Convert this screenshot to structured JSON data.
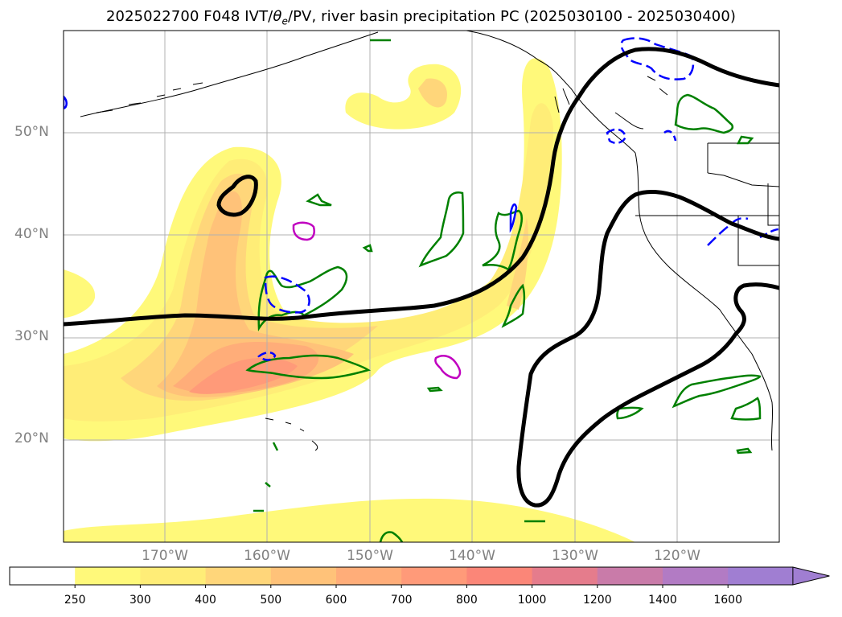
{
  "title": {
    "prefix": "2025022700 F048 IVT/",
    "theta": "θ",
    "theta_sub": "e",
    "suffix": "/PV, river basin precipitation PC (2025030100 - 2025030400)"
  },
  "lat_labels": [
    "50°N",
    "40°N",
    "30°N",
    "20°N"
  ],
  "lon_labels": [
    "170°W",
    "160°W",
    "150°W",
    "140°W",
    "130°W",
    "120°W"
  ],
  "colorbar": {
    "labels": [
      "250",
      "300",
      "400",
      "500",
      "600",
      "700",
      "800",
      "1000",
      "1200",
      "1400",
      "1600"
    ],
    "colors": [
      "#ffffff",
      "#fff97a",
      "#ffed77",
      "#ffd67a",
      "#ffc279",
      "#ffad79",
      "#ff9a79",
      "#fb8678",
      "#e57c8c",
      "#c97ba9",
      "#b27bc4",
      "#a07ed2"
    ]
  },
  "colors": {
    "pv_contour": "#000000",
    "green_contour": "#008000",
    "blue_contour": "#0000ff",
    "magenta_contour": "#c000c0",
    "grid": "#b0b0b0",
    "tick_label": "#808080"
  }
}
